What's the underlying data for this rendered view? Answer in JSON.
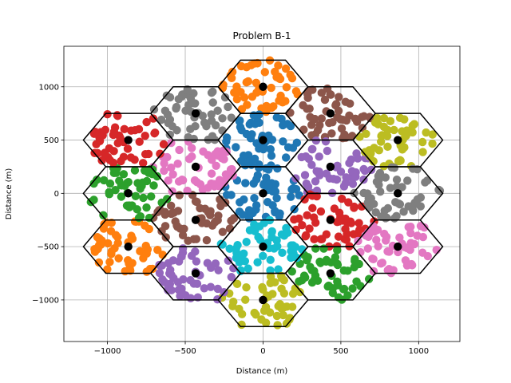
{
  "chart_data": {
    "type": "scatter",
    "title": "Problem B-1",
    "xlabel": "Distance (m)",
    "ylabel": "Distance (m)",
    "xlim": [
      -1280,
      1265
    ],
    "ylim": [
      -1390,
      1380
    ],
    "xticks": [
      -1000,
      -500,
      0,
      500,
      1000
    ],
    "xtick_labels": [
      "−1000",
      "−500",
      "0",
      "500",
      "1000"
    ],
    "yticks": [
      -1000,
      -500,
      0,
      500,
      1000
    ],
    "ytick_labels": [
      "−1000",
      "−500",
      "0",
      "500",
      "1000"
    ],
    "grid": true,
    "legend": "none",
    "cell_radius_m": 288.7,
    "points_per_cell": 50,
    "cells": [
      {
        "center": [
          0,
          0
        ],
        "color": "#1f77b4"
      },
      {
        "center": [
          0,
          1000
        ],
        "color": "#ff7f0e"
      },
      {
        "center": [
          0,
          500
        ],
        "color": "#1f77b4"
      },
      {
        "center": [
          433,
          750
        ],
        "color": "#8c564b"
      },
      {
        "center": [
          433,
          250
        ],
        "color": "#9467bd"
      },
      {
        "center": [
          433,
          -250
        ],
        "color": "#d62728"
      },
      {
        "center": [
          433,
          -750
        ],
        "color": "#2ca02c"
      },
      {
        "center": [
          0,
          -500
        ],
        "color": "#17becf"
      },
      {
        "center": [
          0,
          -1000
        ],
        "color": "#bcbd22"
      },
      {
        "center": [
          -433,
          -750
        ],
        "color": "#9467bd"
      },
      {
        "center": [
          -433,
          -250
        ],
        "color": "#8c564b"
      },
      {
        "center": [
          -433,
          250
        ],
        "color": "#e377c2"
      },
      {
        "center": [
          -433,
          750
        ],
        "color": "#7f7f7f"
      },
      {
        "center": [
          866,
          500
        ],
        "color": "#bcbd22"
      },
      {
        "center": [
          866,
          0
        ],
        "color": "#7f7f7f"
      },
      {
        "center": [
          866,
          -500
        ],
        "color": "#e377c2"
      },
      {
        "center": [
          -866,
          -500
        ],
        "color": "#ff7f0e"
      },
      {
        "center": [
          -866,
          0
        ],
        "color": "#2ca02c"
      },
      {
        "center": [
          -866,
          500
        ],
        "color": "#d62728"
      }
    ]
  }
}
